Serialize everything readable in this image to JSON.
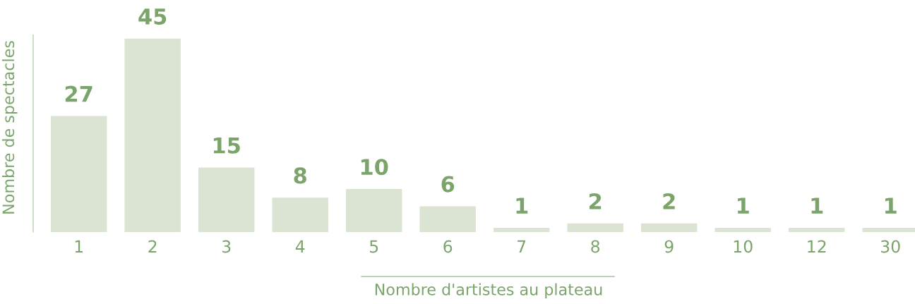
{
  "chart_data": {
    "type": "bar",
    "xlabel": "Nombre d'artistes au plateau",
    "ylabel": "Nombre de spectacles",
    "categories": [
      "1",
      "2",
      "3",
      "4",
      "5",
      "6",
      "7",
      "8",
      "9",
      "10",
      "12",
      "30"
    ],
    "values": [
      27,
      45,
      15,
      8,
      10,
      6,
      1,
      2,
      2,
      1,
      1,
      1
    ],
    "color": "#dbe3d3",
    "data_labels": true,
    "grid": false,
    "legend": false
  }
}
